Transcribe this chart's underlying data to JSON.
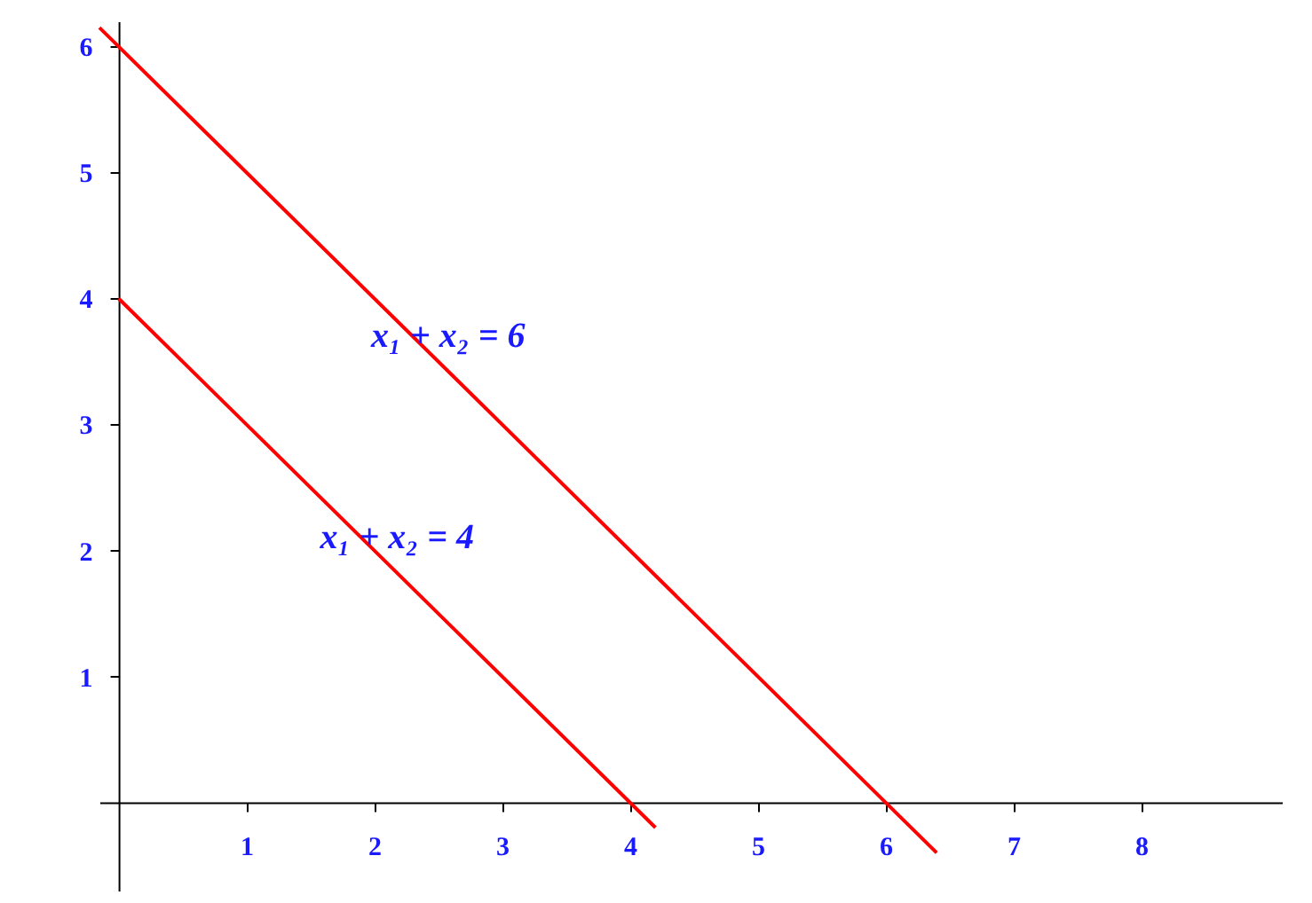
{
  "chart_data": {
    "type": "line",
    "xlim": [
      -0.15,
      9.1
    ],
    "ylim": [
      -0.7,
      6.2
    ],
    "xticks": [
      1,
      2,
      3,
      4,
      5,
      6,
      7,
      8
    ],
    "yticks": [
      1,
      2,
      3,
      4,
      5,
      6
    ],
    "grid": false,
    "marker": "none",
    "line_style": "solid",
    "series": [
      {
        "color": "#ff0000",
        "x": [
          -0.15,
          6.4
        ],
        "values": [
          6.15,
          -0.4
        ]
      },
      {
        "color": "#ff0000",
        "x": [
          0,
          4.2
        ],
        "values": [
          4,
          -0.2
        ]
      }
    ],
    "annotations": [
      {
        "text": "x₁ + x₂ = 6",
        "x": 2.3,
        "y": 3.7
      },
      {
        "text": "x₁ + x₂ = 4",
        "x": 1.9,
        "y": 2.1
      }
    ]
  }
}
